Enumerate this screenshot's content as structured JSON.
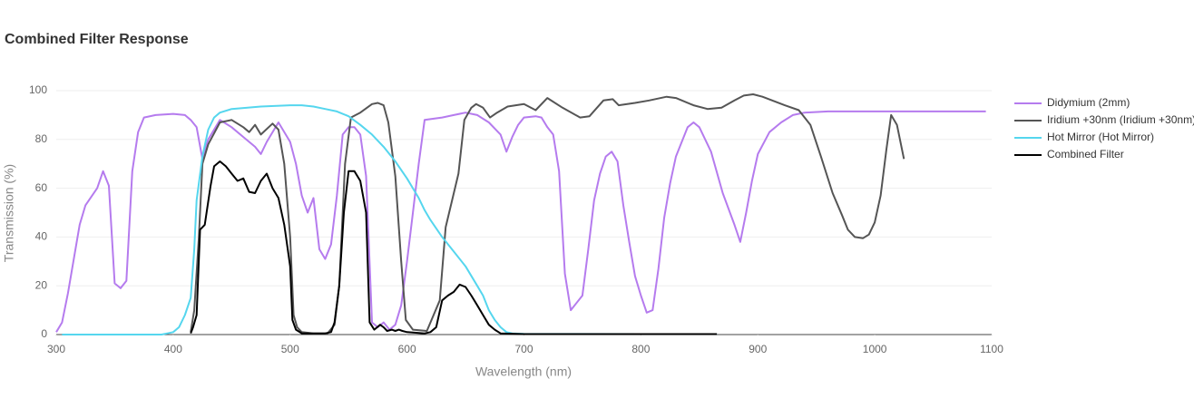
{
  "chart_data": {
    "type": "line",
    "title": "Combined Filter Response",
    "xlabel": "Wavelength (nm)",
    "ylabel": "Transmission (%)",
    "xlim": [
      300,
      1100
    ],
    "xticks": [
      300,
      400,
      500,
      600,
      700,
      800,
      900,
      1000,
      1100
    ],
    "ylim": [
      0,
      100
    ],
    "yticks": [
      0,
      20,
      40,
      60,
      80,
      100
    ],
    "grid": true,
    "legend": "right",
    "series": [
      {
        "name": "Didymium (2mm)",
        "color": "#b57bee",
        "x": [
          300,
          305,
          310,
          320,
          325,
          335,
          340,
          345,
          350,
          355,
          360,
          365,
          370,
          375,
          385,
          400,
          410,
          415,
          420,
          425,
          430,
          440,
          450,
          460,
          470,
          475,
          480,
          490,
          500,
          505,
          510,
          515,
          520,
          525,
          530,
          535,
          540,
          545,
          550,
          555,
          560,
          565,
          570,
          575,
          580,
          585,
          590,
          595,
          600,
          605,
          610,
          615,
          630,
          640,
          650,
          660,
          670,
          680,
          685,
          690,
          695,
          700,
          710,
          715,
          720,
          725,
          730,
          735,
          740,
          750,
          755,
          760,
          765,
          770,
          775,
          780,
          785,
          790,
          795,
          800,
          805,
          810,
          815,
          820,
          825,
          830,
          840,
          845,
          850,
          860,
          870,
          880,
          885,
          890,
          895,
          900,
          910,
          920,
          930,
          940,
          960,
          1000,
          1095
        ],
        "values": [
          1,
          5,
          17,
          45,
          53,
          60,
          67,
          61,
          21,
          19,
          22,
          67,
          83,
          89,
          90,
          90.5,
          90,
          88,
          85,
          72,
          80,
          88,
          85,
          81,
          77,
          74,
          79,
          87,
          79,
          70,
          57,
          50,
          56,
          35,
          31,
          37,
          57,
          82,
          85,
          85,
          82,
          65,
          5,
          3,
          5,
          2,
          4,
          12,
          30,
          50,
          70,
          88,
          89,
          90,
          91,
          90,
          87,
          82,
          75,
          81,
          86,
          89,
          89.5,
          89,
          85,
          82,
          67,
          25,
          10,
          16,
          35,
          55,
          66,
          73,
          75,
          71,
          53,
          38,
          24,
          16,
          9,
          10,
          27,
          48,
          62,
          73,
          85,
          87,
          85,
          75,
          58,
          45,
          38,
          50,
          63,
          74,
          83,
          87,
          90,
          91,
          91.5,
          91.5,
          91.5
        ]
      },
      {
        "name": "Iridium +30nm (Iridium +30nm)",
        "color": "#555555",
        "x": [
          415,
          418,
          422,
          425,
          430,
          440,
          450,
          460,
          465,
          470,
          475,
          485,
          490,
          495,
          500,
          503,
          506,
          510,
          520,
          532,
          538,
          542,
          547,
          552,
          560,
          570,
          575,
          580,
          584,
          590,
          595,
          599,
          605,
          617,
          628,
          633,
          644,
          649,
          655,
          659,
          665,
          671,
          677,
          686,
          700,
          710,
          720,
          733,
          748,
          756,
          768,
          776,
          781,
          795,
          807,
          822,
          830,
          845,
          857,
          869,
          880,
          888,
          896,
          904,
          923,
          935,
          945,
          954,
          964,
          972,
          977,
          983,
          990,
          995,
          1000,
          1005,
          1010,
          1014,
          1019,
          1025
        ],
        "values": [
          1,
          10,
          40,
          70,
          78,
          87,
          88,
          85,
          83,
          86,
          82,
          86.5,
          84,
          70,
          40,
          8,
          3,
          1,
          0.5,
          0.5,
          4,
          20,
          70,
          89,
          91,
          94.5,
          95,
          94,
          87,
          65,
          30,
          6,
          2,
          1.5,
          14,
          44,
          66,
          88,
          93,
          94.5,
          93,
          89,
          91,
          93.5,
          94.5,
          92,
          97,
          93,
          89,
          89.5,
          96,
          96.5,
          94,
          95,
          96,
          97.5,
          97,
          94,
          92.5,
          93,
          96,
          98,
          98.5,
          97.5,
          94,
          92,
          86,
          73,
          58,
          49,
          43,
          40,
          39.5,
          41,
          46,
          57,
          76,
          90,
          86,
          72
        ]
      },
      {
        "name": "Hot Mirror (Hot Mirror)",
        "color": "#55d6ee",
        "x": [
          305,
          390,
          395,
          400,
          405,
          410,
          415,
          418,
          420,
          425,
          430,
          435,
          440,
          450,
          475,
          500,
          510,
          520,
          530,
          540,
          550,
          560,
          570,
          580,
          590,
          600,
          610,
          615,
          620,
          630,
          640,
          650,
          660,
          665,
          670,
          675,
          680,
          685,
          690,
          700,
          800,
          865
        ],
        "values": [
          0,
          0,
          0.5,
          1,
          3,
          8,
          15,
          35,
          55,
          73,
          84,
          89,
          91,
          92.5,
          93.5,
          94,
          94,
          93.5,
          92.5,
          91.5,
          89.5,
          86,
          82,
          77,
          71,
          64,
          56,
          51,
          47,
          40,
          34,
          28,
          20,
          16,
          10,
          6,
          3,
          1,
          0.5,
          0.3,
          0.2,
          0.2
        ]
      },
      {
        "name": "Combined Filter",
        "color": "#000000",
        "x": [
          415,
          417,
          420,
          423,
          427,
          432,
          435,
          440,
          445,
          450,
          455,
          460,
          465,
          470,
          475,
          480,
          485,
          490,
          495,
          500,
          502,
          505,
          510,
          530,
          535,
          538,
          542,
          546,
          550,
          555,
          560,
          565,
          568,
          572,
          577,
          580,
          583,
          587,
          590,
          593,
          596,
          600,
          615,
          620,
          625,
          630,
          635,
          640,
          645,
          650,
          655,
          660,
          665,
          670,
          675,
          680,
          700,
          865
        ],
        "values": [
          0.5,
          3,
          8,
          43,
          45,
          61,
          69,
          71,
          69,
          66,
          63,
          64,
          58.5,
          58,
          63,
          66,
          60,
          56,
          45,
          28,
          6,
          2,
          0.5,
          0.5,
          1,
          5,
          20,
          50,
          67,
          67,
          63,
          50,
          5,
          2,
          4,
          3,
          1.5,
          2,
          1.5,
          2,
          1.5,
          1,
          0.5,
          1,
          3,
          14,
          16,
          17.5,
          20.5,
          19.5,
          16,
          12,
          8,
          4,
          2,
          0.5,
          0.2,
          0.2
        ]
      }
    ]
  }
}
